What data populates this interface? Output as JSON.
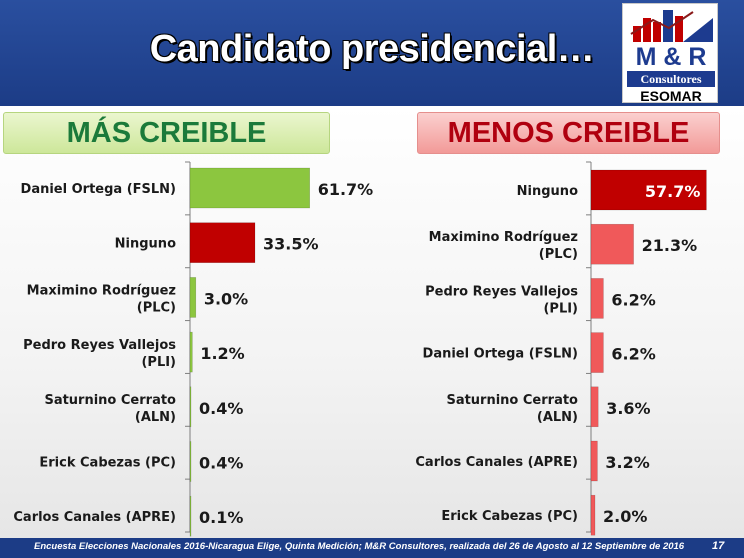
{
  "header": {
    "title": "Candidato presidencial…"
  },
  "logo": {
    "line1": "M & R",
    "line2": "Consultores",
    "line3": "ESOMAR"
  },
  "panels": {
    "left_heading": "MÁS CREIBLE",
    "right_heading": "MENOS CREIBLE"
  },
  "colors": {
    "header_bg": "#1c3c86",
    "green_bar": "#8cc63f",
    "red_bar": "#c00000",
    "pink_bar": "#f0595a"
  },
  "chart_data": [
    {
      "type": "bar",
      "orientation": "horizontal",
      "title": "MÁS CREIBLE",
      "categories": [
        "Daniel Ortega (FSLN)",
        "Ninguno",
        "Maximino Rodríguez (PLC)",
        "Pedro Reyes Vallejos (PLI)",
        "Saturnino Cerrato (ALN)",
        "Erick Cabezas (PC)",
        "Carlos Canales (APRE)"
      ],
      "values": [
        61.7,
        33.5,
        3.0,
        1.2,
        0.4,
        0.4,
        0.1
      ],
      "labels": [
        "61.7%",
        "33.5%",
        "3.0%",
        "1.2%",
        "0.4%",
        "0.4%",
        "0.1%"
      ],
      "colors": [
        "#8cc63f",
        "#c00000",
        "#8cc63f",
        "#8cc63f",
        "#8cc63f",
        "#8cc63f",
        "#8cc63f"
      ],
      "xlim": [
        0,
        100
      ]
    },
    {
      "type": "bar",
      "orientation": "horizontal",
      "title": "MENOS CREIBLE",
      "categories": [
        "Ninguno",
        "Maximino Rodríguez (PLC)",
        "Pedro Reyes Vallejos (PLI)",
        "Daniel Ortega (FSLN)",
        "Saturnino Cerrato (ALN)",
        "Carlos Canales (APRE)",
        "Erick Cabezas (PC)"
      ],
      "values": [
        57.7,
        21.3,
        6.2,
        6.2,
        3.6,
        3.2,
        2.0
      ],
      "labels": [
        "57.7%",
        "21.3%",
        "6.2%",
        "6.2%",
        "3.6%",
        "3.2%",
        "2.0%"
      ],
      "colors": [
        "#c00000",
        "#f0595a",
        "#f0595a",
        "#f0595a",
        "#f0595a",
        "#f0595a",
        "#f0595a"
      ],
      "xlim": [
        0,
        100
      ]
    }
  ],
  "footer": {
    "text": "Encuesta Elecciones Nacionales 2016-Nicaragua Elige, Quinta Medición; M&R Consultores, realizada del 26 de Agosto al 12 Septiembre de 2016",
    "page_number": "17"
  }
}
